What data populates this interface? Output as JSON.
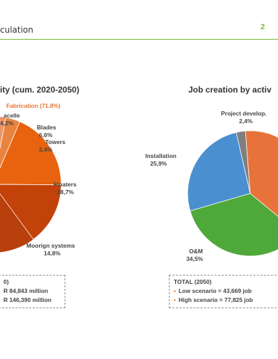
{
  "header": {
    "title": "culation",
    "page_number": "2"
  },
  "colors": {
    "accent_green": "#76b82a",
    "fabrication_orange": "#e8732f"
  },
  "chart_data": [
    {
      "type": "pie",
      "title": "ity (cum. 2020-2050)",
      "group_label": "Fabrication (71.8%)",
      "slices": [
        {
          "name": "acelle",
          "value_label": "4,2%",
          "value": 4.2,
          "color": "#f2b08a"
        },
        {
          "name": "Blades",
          "value_label": "6,6%",
          "value": 6.6,
          "color": "#f0946a"
        },
        {
          "name": "Towers",
          "value_label": "3,4%",
          "value": 3.4,
          "color": "#e8843f"
        },
        {
          "name": "Floaters",
          "value_label": "18,7%",
          "value": 18.7,
          "color": "#e8630f"
        },
        {
          "name": "Moorign systems",
          "value_label": "14,8%",
          "value": 14.8,
          "color": "#c2420a"
        }
      ],
      "totals": {
        "heading": "0)",
        "rows": [
          "R 84,843 million",
          "R 146,390 million"
        ]
      }
    },
    {
      "type": "pie",
      "title": "Job creation by activ",
      "slices": [
        {
          "name": "Project develop.",
          "value_label": "2,4%",
          "value": 2.4,
          "color": "#7f7f7f"
        },
        {
          "name": "",
          "value_label": "",
          "value": 37.2,
          "color": "#e8733a"
        },
        {
          "name": "O&M",
          "value_label": "34,5%",
          "value": 34.5,
          "color": "#4ea83a"
        },
        {
          "name": "Installation",
          "value_label": "25,9%",
          "value": 25.9,
          "color": "#4a8fd0"
        }
      ],
      "totals": {
        "heading": "TOTAL (2050)",
        "rows": [
          "Low scenario = 43,669 job",
          "High scenario = 77,825 job"
        ]
      }
    }
  ]
}
